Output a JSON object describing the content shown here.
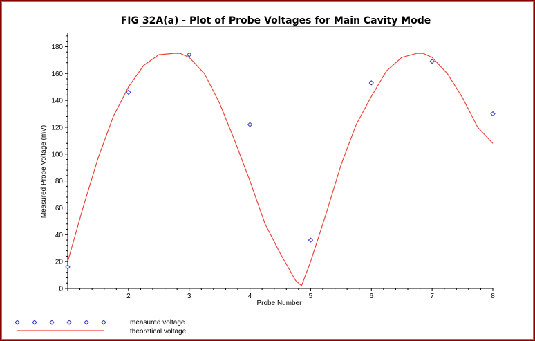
{
  "chart_data": {
    "type": "scatter",
    "title": "FIG 32A(a) - Plot of Probe Voltages for Main Cavity Mode",
    "xlabel": "Probe Number",
    "ylabel": "Measured Probe Voltage (mV)",
    "xlim": [
      1,
      8
    ],
    "ylim": [
      0,
      190
    ],
    "x_ticks": [
      2,
      3,
      4,
      5,
      6,
      7,
      8
    ],
    "y_ticks": [
      0,
      20,
      40,
      60,
      80,
      100,
      120,
      140,
      160,
      180
    ],
    "grid": false,
    "legend_position": "bottom-left",
    "series": [
      {
        "name": "measured voltage",
        "kind": "scatter",
        "marker": "diamond",
        "color": "#3333cc",
        "x": [
          1,
          2,
          3,
          4,
          5,
          6,
          7,
          8
        ],
        "y": [
          16,
          146,
          174,
          122,
          36,
          153,
          169,
          130
        ]
      },
      {
        "name": "theoretical voltage",
        "kind": "line",
        "color": "#e8463a",
        "x": [
          1,
          1.25,
          1.5,
          1.75,
          2,
          2.25,
          2.5,
          2.75,
          2.85,
          3,
          3.25,
          3.5,
          3.75,
          4,
          4.25,
          4.5,
          4.75,
          4.85,
          5,
          5.25,
          5.5,
          5.75,
          6,
          6.25,
          6.5,
          6.75,
          6.85,
          7,
          7.25,
          7.5,
          7.75,
          8
        ],
        "y": [
          20,
          60,
          97,
          128,
          150,
          166,
          174,
          175,
          175,
          172,
          160,
          138,
          110,
          80,
          48,
          26,
          6,
          2,
          20,
          55,
          92,
          122,
          143,
          162,
          172,
          175,
          175,
          172,
          160,
          142,
          120,
          108
        ]
      }
    ]
  }
}
